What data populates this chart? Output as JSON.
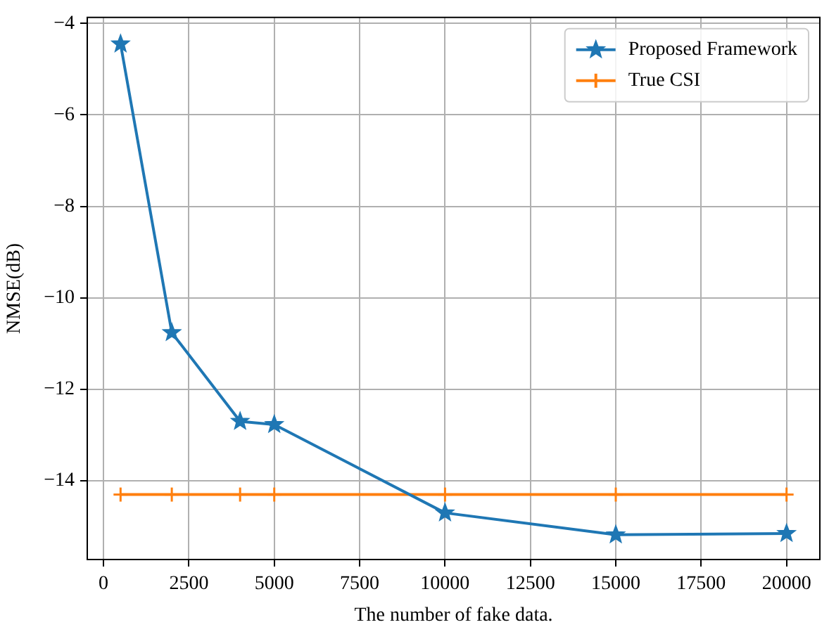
{
  "chart_data": {
    "type": "line",
    "xlabel": "The number of fake data.",
    "ylabel": "NMSE(dB)",
    "x": [
      500,
      2000,
      4000,
      5000,
      10000,
      15000,
      20000
    ],
    "series": [
      {
        "name": "Proposed Framework",
        "color": "#1f77b4",
        "marker": "star",
        "values": [
          -4.45,
          -10.76,
          -12.7,
          -12.77,
          -14.7,
          -15.18,
          -15.15
        ]
      },
      {
        "name": "True CSI",
        "color": "#ff7f0e",
        "marker": "cross",
        "values": [
          -14.3,
          -14.3,
          -14.3,
          -14.3,
          -14.3,
          -14.3,
          -14.3
        ]
      }
    ],
    "xlim": [
      -475,
      20975
    ],
    "xticks": [
      0,
      2500,
      5000,
      7500,
      10000,
      12500,
      15000,
      17500,
      20000
    ],
    "ylim": [
      -15.72,
      -3.87
    ],
    "yticks": [
      -14,
      -12,
      -10,
      -8,
      -6,
      -4
    ],
    "grid": true,
    "legend": "top right",
    "line_style": "solid"
  }
}
